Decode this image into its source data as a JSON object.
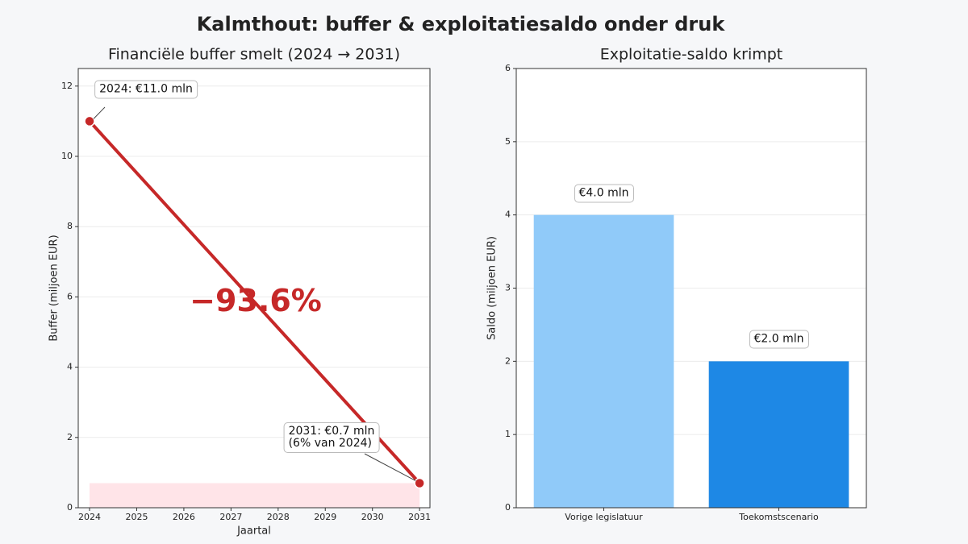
{
  "title": "Kalmthout: buffer & exploitatiesaldo onder druk",
  "chart_data": [
    {
      "type": "line",
      "title": "Financiële buffer smelt (2024 → 2031)",
      "x_label": "Jaartal",
      "y_label": "Buffer (miljoen EUR)",
      "x": [
        2024,
        2031
      ],
      "values": [
        11.0,
        0.7
      ],
      "value_labels": [
        "2024: €11.0 mln",
        "2031: €0.7 mln\n(6% van 2024)"
      ],
      "annotation": "−93.6%",
      "color": "#c62828",
      "band_color": "#ffe4e8",
      "xlim": [
        2023.76,
        2031.22
      ],
      "xticks": [
        2024,
        2025,
        2026,
        2027,
        2028,
        2029,
        2030,
        2031
      ],
      "ylim": [
        0,
        12.5
      ],
      "yticks": [
        0,
        2,
        4,
        6,
        8,
        10,
        12
      ],
      "grid": true
    },
    {
      "type": "bar",
      "title": "Exploitatie-saldo krimpt",
      "y_label": "Saldo (miljoen EUR)",
      "categories": [
        "Vorige legislatuur",
        "Toekomstscenario"
      ],
      "values": [
        4.0,
        2.0
      ],
      "value_labels": [
        "€4.0 mln",
        "€2.0 mln"
      ],
      "colors": [
        "#90caf9",
        "#1e88e5"
      ],
      "ylim": [
        0,
        6
      ],
      "yticks": [
        0,
        1,
        2,
        3,
        4,
        5,
        6
      ],
      "grid": true
    }
  ]
}
